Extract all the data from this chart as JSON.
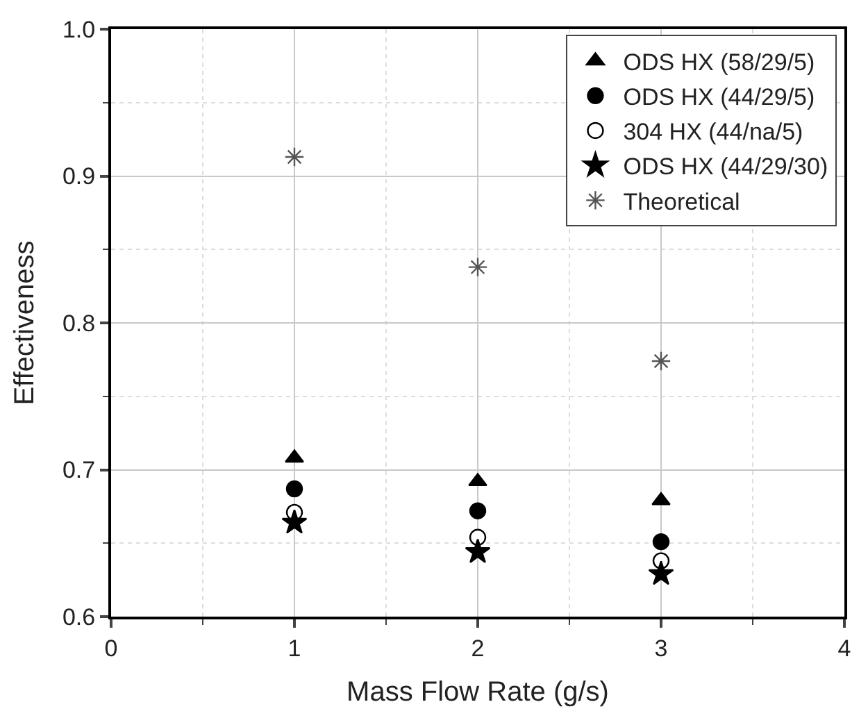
{
  "chart_data": {
    "type": "scatter",
    "xlabel": "Mass Flow Rate (g/s)",
    "ylabel": "Effectiveness",
    "x": [
      1,
      2,
      3
    ],
    "series": [
      {
        "name": "ODS HX (58/29/5)",
        "color": "#000000",
        "marker": "triangle",
        "values": [
          0.708,
          0.692,
          0.679
        ]
      },
      {
        "name": "ODS HX (44/29/5)",
        "color": "#000000",
        "marker": "circle",
        "values": [
          0.687,
          0.672,
          0.651
        ]
      },
      {
        "name": "304 HX (44/na/5)",
        "color": "#ffffff",
        "marker": "circle",
        "values": [
          0.671,
          0.654,
          0.638
        ]
      },
      {
        "name": "ODS HX (44/29/30)",
        "color": "#000000",
        "marker": "star",
        "values": [
          0.664,
          0.644,
          0.629
        ]
      },
      {
        "name": "Theoretical",
        "color": "#555555",
        "marker": "cross",
        "values": [
          0.913,
          0.838,
          0.774
        ]
      }
    ],
    "xlim": [
      0,
      4
    ],
    "xticks": [
      0,
      1,
      2,
      3,
      4
    ],
    "ylim": [
      0.6,
      1.0
    ],
    "yticks": [
      0.6,
      0.7,
      0.8,
      0.9,
      {
        "value": 1.0,
        "label": "1.0"
      }
    ],
    "grid": true,
    "legend": "top right"
  }
}
